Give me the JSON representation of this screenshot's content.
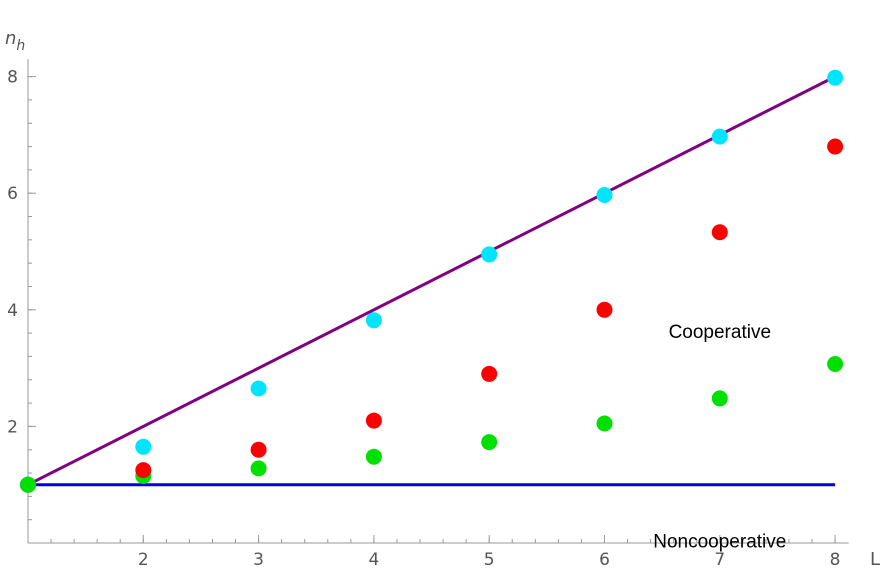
{
  "chart_data": {
    "type": "scatter",
    "title": "",
    "xlabel": "L",
    "ylabel_base": "n",
    "ylabel_sub": "h",
    "xlim": [
      1,
      8.1
    ],
    "ylim": [
      0,
      8.3
    ],
    "x_ticks": [
      2,
      3,
      4,
      5,
      6,
      7,
      8
    ],
    "y_ticks": [
      2,
      4,
      6,
      8
    ],
    "x_minor_step": 0.2,
    "y_minor_step": 0.4,
    "lines": [
      {
        "name": "",
        "color": "#800080",
        "points": [
          [
            1,
            1
          ],
          [
            8,
            8
          ]
        ]
      },
      {
        "name": "",
        "color": "#0000dd",
        "points": [
          [
            1,
            1
          ],
          [
            8,
            1
          ]
        ]
      }
    ],
    "series": [
      {
        "name": "",
        "color": "#00e5ff",
        "x": [
          1,
          2,
          3,
          4,
          5,
          6,
          7,
          8
        ],
        "y": [
          1.0,
          1.65,
          2.65,
          3.82,
          4.95,
          5.97,
          6.97,
          7.98
        ]
      },
      {
        "name": "",
        "color": "#ff0000",
        "x": [
          1,
          2,
          3,
          4,
          5,
          6,
          7,
          8
        ],
        "y": [
          1.0,
          1.25,
          1.6,
          2.1,
          2.9,
          4.0,
          5.33,
          6.8
        ]
      },
      {
        "name": "",
        "color": "#00e000",
        "x": [
          1,
          2,
          3,
          4,
          5,
          6,
          7,
          8
        ],
        "y": [
          1.0,
          1.15,
          1.28,
          1.48,
          1.73,
          2.05,
          2.48,
          3.07
        ]
      }
    ],
    "annotations": [
      {
        "text": "Cooperative",
        "x": 7.0,
        "y": 4.0
      },
      {
        "text": "Noncooperative",
        "x": 7.0,
        "y": 0.4
      }
    ],
    "grid": false,
    "legend": "none"
  }
}
